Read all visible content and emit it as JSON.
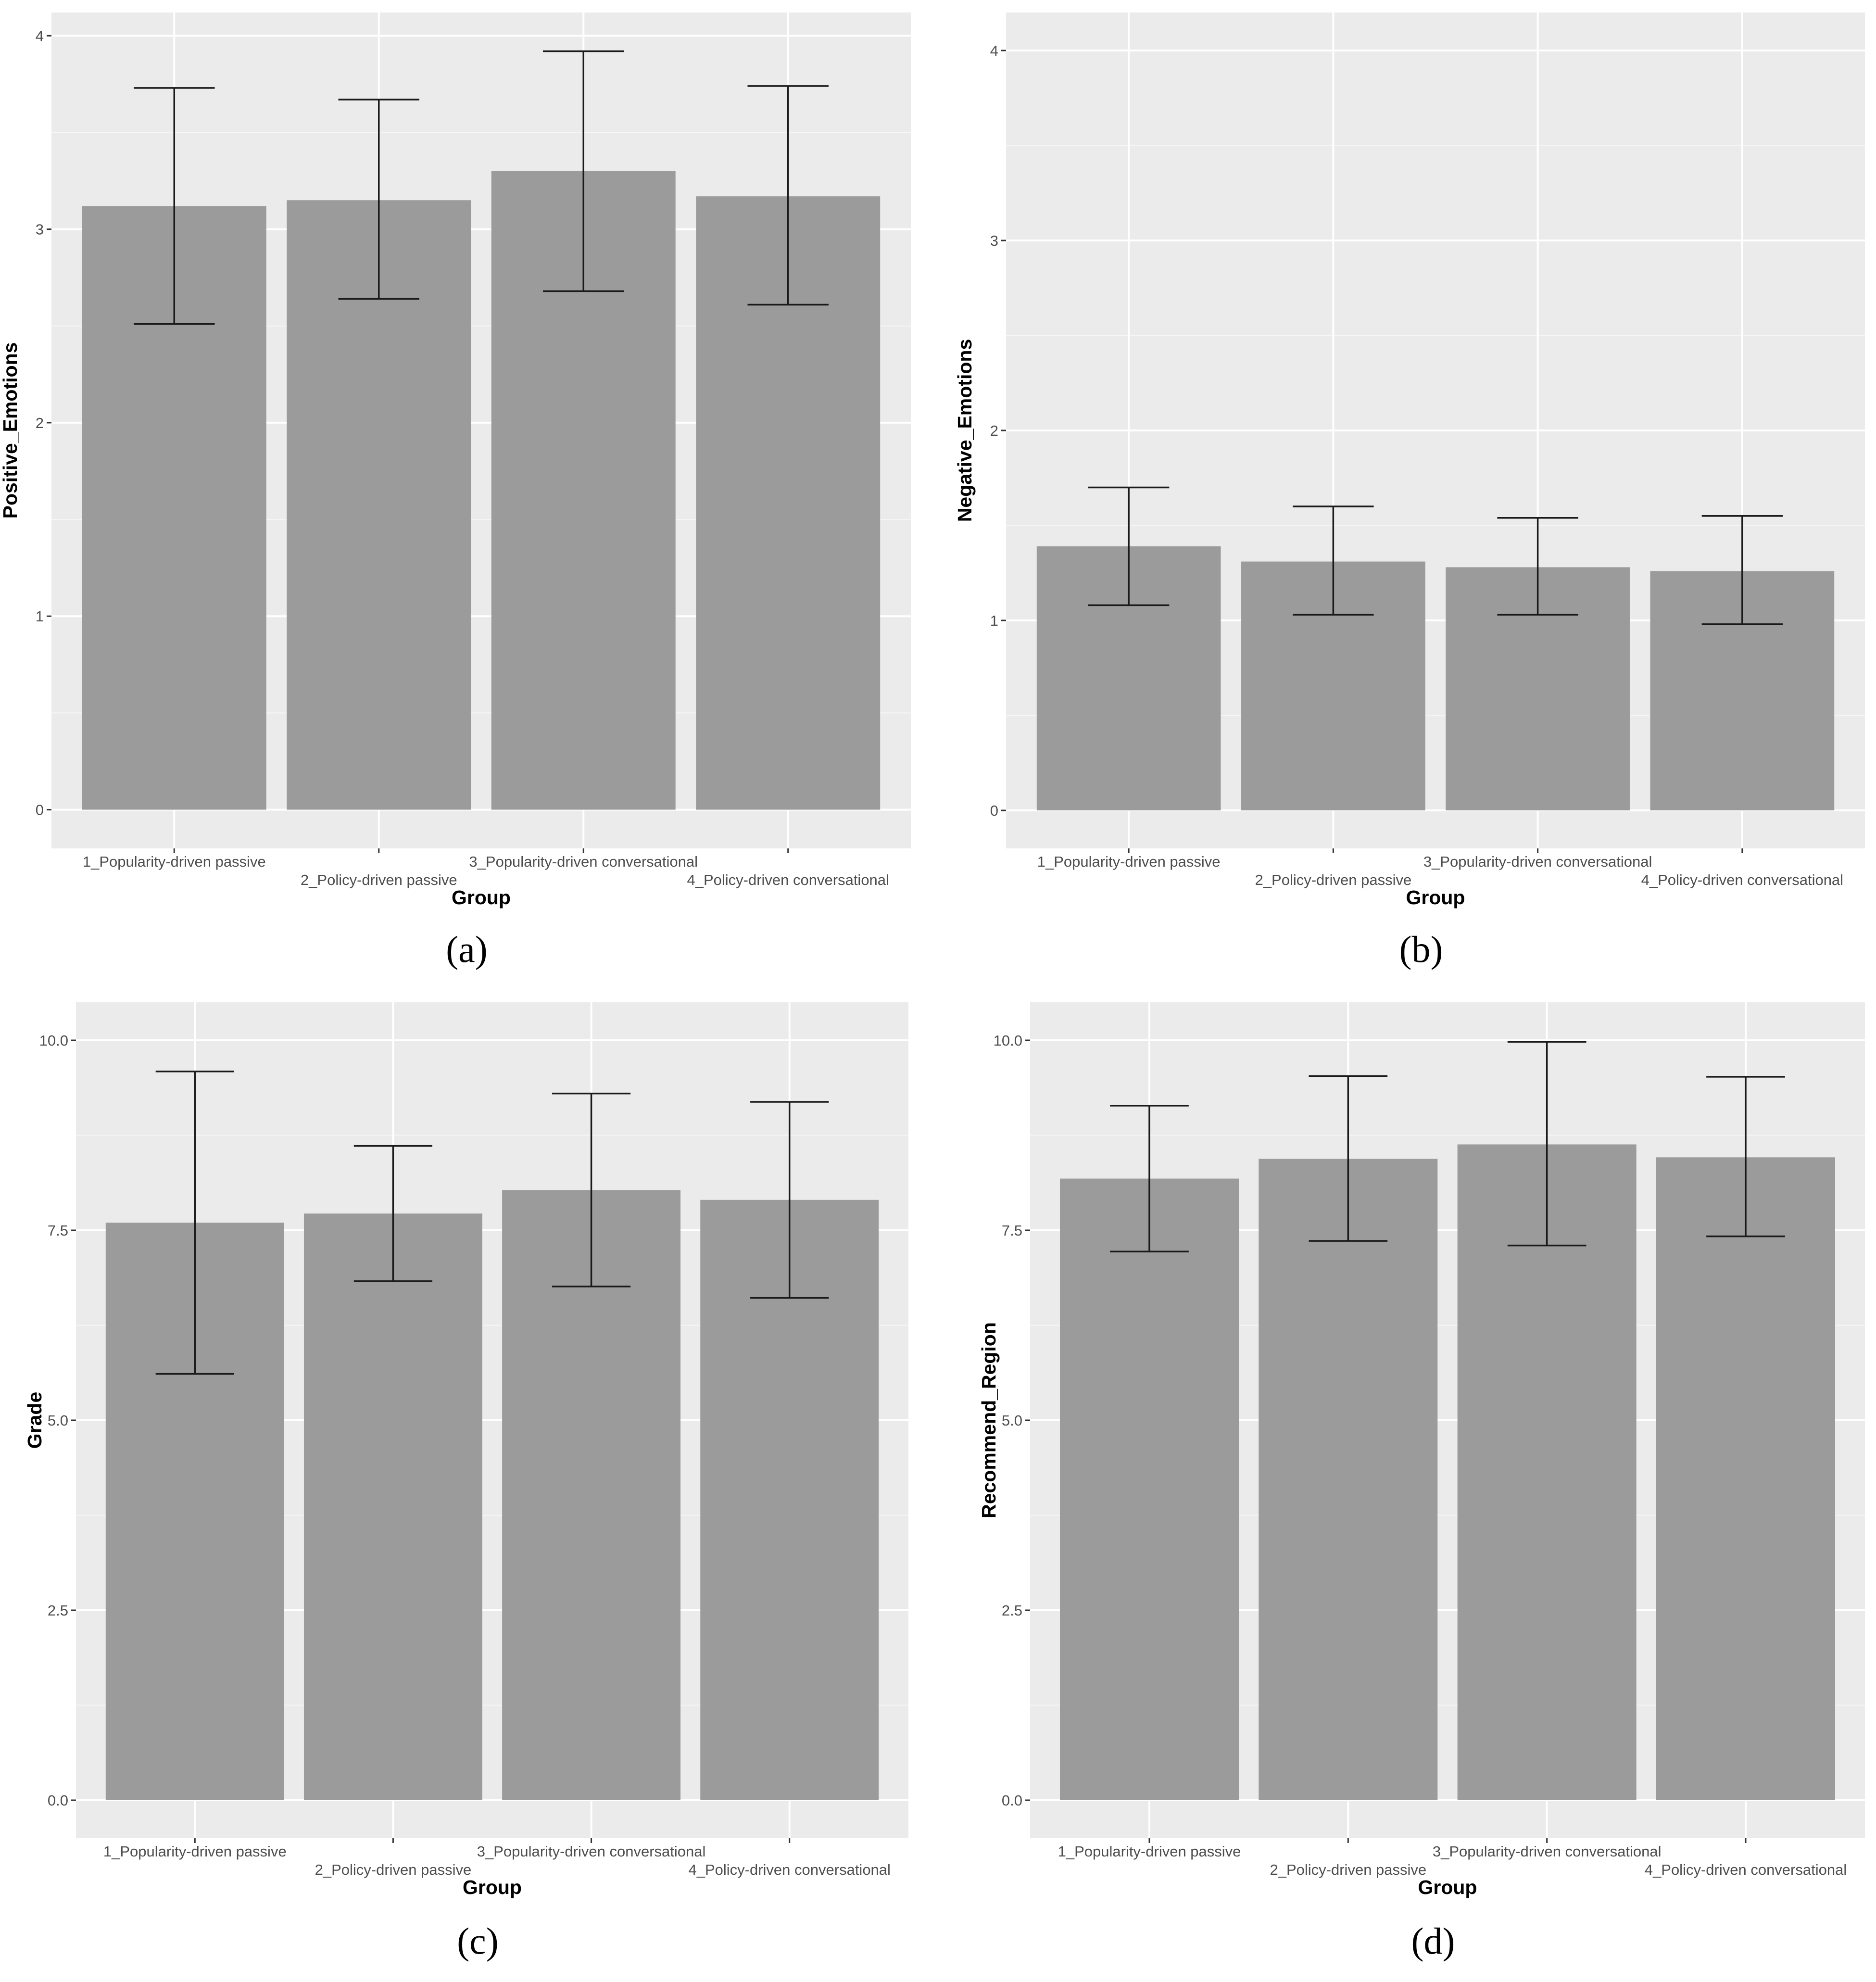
{
  "colors": {
    "panel_background": "#ebebeb",
    "grid_major": "#ffffff",
    "bar_fill": "#9b9b9b",
    "error_bar": "#1a1a1a",
    "tick_text": "#4d4d4d"
  },
  "chart_data": [
    {
      "type": "bar",
      "panel_label": "(a)",
      "categories": [
        "1_Popularity-driven passive",
        "2_Policy-driven passive",
        "3_Popularity-driven conversational",
        "4_Policy-driven conversational"
      ],
      "values": [
        3.12,
        3.15,
        3.3,
        3.17
      ],
      "error_low": [
        2.51,
        2.64,
        2.68,
        2.61
      ],
      "error_high": [
        3.73,
        3.67,
        3.92,
        3.74
      ],
      "xlabel": "Group",
      "ylabel": "Positive_Emotions",
      "ylim": [
        -0.2,
        4.12
      ],
      "yticks": [
        0,
        1,
        2,
        3,
        4
      ],
      "ytick_labels": [
        "0",
        "1",
        "2",
        "3",
        "4"
      ],
      "grid": true,
      "legend": "none"
    },
    {
      "type": "bar",
      "panel_label": "(b)",
      "categories": [
        "1_Popularity-driven passive",
        "2_Policy-driven passive",
        "3_Popularity-driven conversational",
        "4_Policy-driven conversational"
      ],
      "values": [
        1.39,
        1.31,
        1.28,
        1.26
      ],
      "error_low": [
        1.08,
        1.03,
        1.03,
        0.98
      ],
      "error_high": [
        1.7,
        1.6,
        1.54,
        1.55
      ],
      "xlabel": "Group",
      "ylabel": "Negative_Emotions",
      "ylim": [
        -0.2,
        4.2
      ],
      "yticks": [
        0,
        1,
        2,
        3,
        4
      ],
      "ytick_labels": [
        "0",
        "1",
        "2",
        "3",
        "4"
      ],
      "grid": true,
      "legend": "none"
    },
    {
      "type": "bar",
      "panel_label": "(c)",
      "categories": [
        "1_Popularity-driven passive",
        "2_Policy-driven passive",
        "3_Popularity-driven conversational",
        "4_Policy-driven conversational"
      ],
      "values": [
        7.6,
        7.72,
        8.03,
        7.9
      ],
      "error_low": [
        5.61,
        6.83,
        6.76,
        6.61
      ],
      "error_high": [
        9.59,
        8.61,
        9.3,
        9.19
      ],
      "xlabel": "Group",
      "ylabel": "Grade",
      "ylim": [
        -0.5,
        10.5
      ],
      "yticks": [
        0,
        2.5,
        5,
        7.5,
        10
      ],
      "ytick_labels": [
        "0.0",
        "2.5",
        "5.0",
        "7.5",
        "10.0"
      ],
      "grid": true,
      "legend": "none"
    },
    {
      "type": "bar",
      "panel_label": "(d)",
      "categories": [
        "1_Popularity-driven passive",
        "2_Policy-driven passive",
        "3_Popularity-driven conversational",
        "4_Policy-driven conversational"
      ],
      "values": [
        8.18,
        8.44,
        8.63,
        8.46
      ],
      "error_low": [
        7.22,
        7.36,
        7.3,
        7.42
      ],
      "error_high": [
        9.14,
        9.53,
        9.98,
        9.52
      ],
      "xlabel": "Group",
      "ylabel": "Recommend_Region",
      "ylim": [
        -0.5,
        10.5
      ],
      "yticks": [
        0,
        2.5,
        5,
        7.5,
        10
      ],
      "ytick_labels": [
        "0.0",
        "2.5",
        "5.0",
        "7.5",
        "10.0"
      ],
      "grid": true,
      "legend": "none"
    }
  ]
}
